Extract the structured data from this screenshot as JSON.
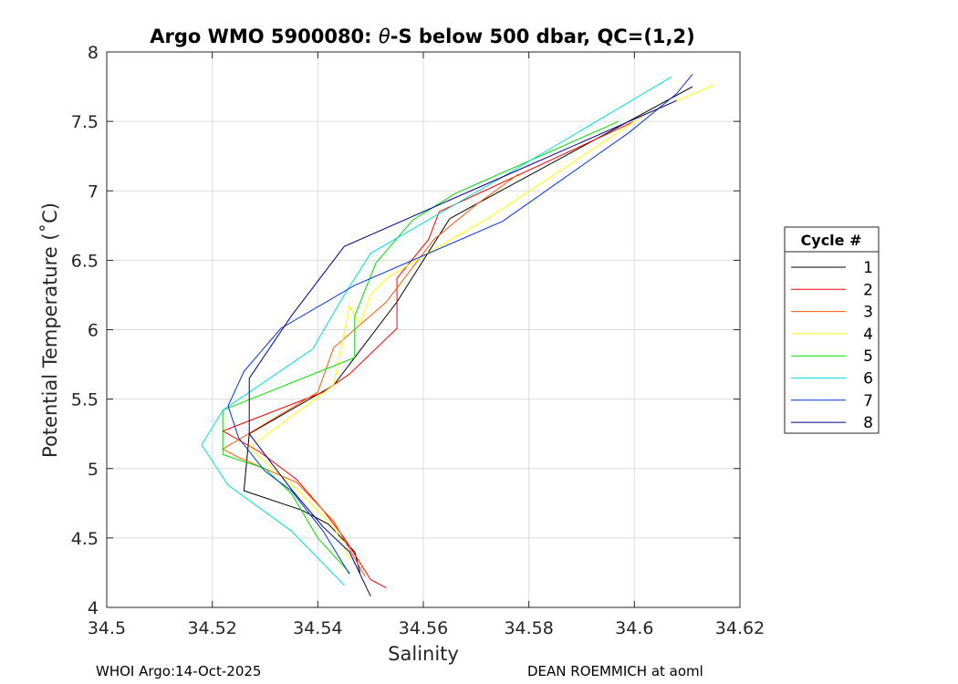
{
  "chart_data": {
    "type": "line",
    "title_prefix": "Argo WMO 5900080: ",
    "title_theta": "θ",
    "title_suffix": "-S below 500 dbar,  QC=(1,2)",
    "xlabel": "Salinity",
    "ylabel": "Potential Temperature (˚C)",
    "xlim": [
      34.5,
      34.62
    ],
    "ylim": [
      4,
      8
    ],
    "xticks": [
      34.5,
      34.52,
      34.54,
      34.56,
      34.58,
      34.6,
      34.62
    ],
    "xtick_labels": [
      "34.5",
      "34.52",
      "34.54",
      "34.56",
      "34.58",
      "34.6",
      "34.62"
    ],
    "yticks": [
      4,
      4.5,
      5,
      5.5,
      6,
      6.5,
      7,
      7.5,
      8
    ],
    "ytick_labels": [
      "4",
      "4.5",
      "5",
      "5.5",
      "6",
      "6.5",
      "7",
      "7.5",
      "8"
    ],
    "grid": true,
    "legend": {
      "title": "Cycle #",
      "placement": "right"
    },
    "footer_left": "WHOI Argo:14-Oct-2025",
    "footer_right": "DEAN ROEMMICH at aoml",
    "series": [
      {
        "name": "1",
        "color": "#000000",
        "points": [
          [
            34.611,
            7.75
          ],
          [
            34.565,
            6.8
          ],
          [
            34.555,
            6.2
          ],
          [
            34.543,
            5.6
          ],
          [
            34.527,
            5.25
          ],
          [
            34.526,
            4.84
          ],
          [
            34.537,
            4.7
          ],
          [
            34.542,
            4.6
          ],
          [
            34.547,
            4.4
          ],
          [
            34.548,
            4.25
          ]
        ]
      },
      {
        "name": "2",
        "color": "#ff0000",
        "points": [
          [
            34.6,
            7.5
          ],
          [
            34.563,
            6.85
          ],
          [
            34.561,
            6.65
          ],
          [
            34.555,
            6.37
          ],
          [
            34.555,
            6.01
          ],
          [
            34.546,
            5.68
          ],
          [
            34.541,
            5.55
          ],
          [
            34.522,
            5.27
          ],
          [
            34.529,
            5.12
          ],
          [
            34.536,
            4.92
          ],
          [
            34.541,
            4.7
          ],
          [
            34.545,
            4.5
          ],
          [
            34.55,
            4.2
          ],
          [
            34.553,
            4.14
          ]
        ]
      },
      {
        "name": "3",
        "color": "#ff5500",
        "points": [
          [
            34.578,
            7.12
          ],
          [
            34.57,
            6.9
          ],
          [
            34.562,
            6.65
          ],
          [
            34.553,
            6.2
          ],
          [
            34.543,
            5.87
          ],
          [
            34.54,
            5.55
          ],
          [
            34.522,
            5.14
          ],
          [
            34.525,
            5.08
          ],
          [
            34.536,
            4.9
          ],
          [
            34.543,
            4.62
          ],
          [
            34.549,
            4.22
          ]
        ]
      },
      {
        "name": "4",
        "color": "#ffff00",
        "points": [
          [
            34.615,
            7.76
          ],
          [
            34.602,
            7.55
          ],
          [
            34.573,
            6.82
          ],
          [
            34.563,
            6.6
          ],
          [
            34.553,
            6.37
          ],
          [
            34.55,
            6.25
          ],
          [
            34.548,
            6.04
          ],
          [
            34.546,
            6.17
          ],
          [
            34.543,
            5.6
          ],
          [
            34.527,
            5.15
          ],
          [
            34.536,
            4.85
          ],
          [
            34.543,
            4.58
          ],
          [
            34.546,
            4.35
          ]
        ]
      },
      {
        "name": "5",
        "color": "#00dd00",
        "points": [
          [
            34.597,
            7.5
          ],
          [
            34.566,
            6.98
          ],
          [
            34.558,
            6.79
          ],
          [
            34.551,
            6.48
          ],
          [
            34.547,
            6.1
          ],
          [
            34.547,
            5.8
          ],
          [
            34.522,
            5.42
          ],
          [
            34.522,
            5.1
          ],
          [
            34.53,
            5.0
          ],
          [
            34.535,
            4.82
          ],
          [
            34.54,
            4.5
          ],
          [
            34.546,
            4.25
          ]
        ]
      },
      {
        "name": "6",
        "color": "#00dddd",
        "points": [
          [
            34.607,
            7.82
          ],
          [
            34.575,
            7.1
          ],
          [
            34.55,
            6.55
          ],
          [
            34.545,
            6.25
          ],
          [
            34.539,
            5.86
          ],
          [
            34.522,
            5.42
          ],
          [
            34.518,
            5.17
          ],
          [
            34.523,
            4.88
          ],
          [
            34.535,
            4.55
          ],
          [
            34.545,
            4.16
          ]
        ]
      },
      {
        "name": "7",
        "color": "#0033dd",
        "points": [
          [
            34.611,
            7.84
          ],
          [
            34.608,
            7.7
          ],
          [
            34.599,
            7.42
          ],
          [
            34.575,
            6.78
          ],
          [
            34.547,
            6.32
          ],
          [
            34.533,
            6.01
          ],
          [
            34.526,
            5.7
          ],
          [
            34.523,
            5.45
          ],
          [
            34.525,
            5.22
          ],
          [
            34.53,
            4.98
          ],
          [
            34.535,
            4.84
          ],
          [
            34.541,
            4.55
          ],
          [
            34.546,
            4.24
          ]
        ]
      },
      {
        "name": "8",
        "color": "#00008b",
        "points": [
          [
            34.608,
            7.65
          ],
          [
            34.575,
            7.1
          ],
          [
            34.545,
            6.6
          ],
          [
            34.535,
            6.1
          ],
          [
            34.527,
            5.65
          ],
          [
            34.527,
            5.25
          ],
          [
            34.535,
            4.85
          ],
          [
            34.541,
            4.58
          ],
          [
            34.546,
            4.4
          ],
          [
            34.55,
            4.08
          ]
        ]
      }
    ]
  }
}
